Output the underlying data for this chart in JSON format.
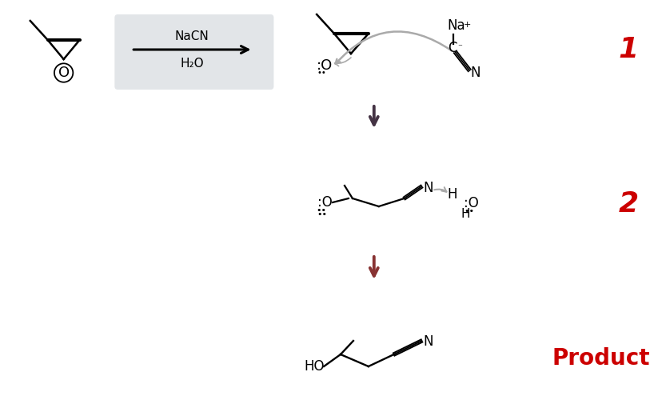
{
  "bg_color": "#ffffff",
  "red_color": "#cc0000",
  "black": "#000000",
  "dark_arrow": "#555566",
  "figsize": [
    8.29,
    5.15
  ],
  "dpi": 100,
  "nacn": "NaCN",
  "h2o": "H₂O",
  "label1": "1",
  "label2": "2",
  "label_product": "Product"
}
